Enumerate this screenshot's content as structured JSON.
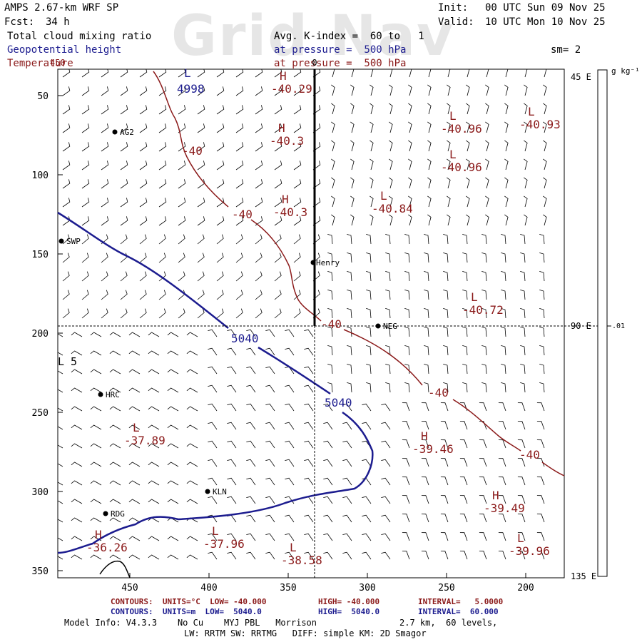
{
  "header": {
    "model": "AMPS 2.67-km WRF SP",
    "fcst_label": "Fcst:",
    "fcst_value": "34 h",
    "init_label": "Init:",
    "init_value": "00 UTC Sun 09 Nov 25",
    "valid_label": "Valid:",
    "valid_value": "10 UTC Mon 10 Nov 25",
    "field1": "Total cloud mixing ratio",
    "field2": "Geopotential height",
    "field3": "Temperature",
    "avg": "Avg. K-index =  60 to   1",
    "pressure1": "at pressure =  500 hPa",
    "pressure2": "at pressure =  500 hPa",
    "sm": "sm= 2",
    "watermark": "Grid Nav"
  },
  "colors": {
    "blue": "#1c1c8f",
    "red": "#8b1a1a",
    "black": "#000000"
  },
  "map": {
    "y_ticks": [
      "50",
      "100",
      "150",
      "200",
      "250",
      "300",
      "350"
    ],
    "x_ticks": [
      "450",
      "400",
      "350",
      "300",
      "250",
      "200"
    ],
    "top_tick_label": "0",
    "left_tick_label": "450",
    "right_labels": [
      "45 E",
      "90 E",
      "135 E"
    ],
    "stations": [
      "AG2",
      "SWP",
      "Henry",
      "NEG",
      "HRC",
      "KLN",
      "RDG"
    ],
    "height_contour_labels": [
      "5040",
      "5040",
      "4998"
    ],
    "temp_contour_labels": [
      "-40",
      "-40",
      "-40",
      "-40",
      "-40"
    ],
    "extrema": [
      {
        "type": "H",
        "value": "-40.29"
      },
      {
        "type": "L",
        "value": "-40.96"
      },
      {
        "type": "L",
        "value": "-40.93"
      },
      {
        "type": "H",
        "value": "-40.3"
      },
      {
        "type": "L",
        "value": "-40.96"
      },
      {
        "type": "H",
        "value": "-40.3"
      },
      {
        "type": "L",
        "value": "-40.84"
      },
      {
        "type": "L",
        "value": "-40.72"
      },
      {
        "type": "L",
        "value": "-37.89"
      },
      {
        "type": "H",
        "value": "-39.46"
      },
      {
        "type": "H",
        "value": "-39.49"
      },
      {
        "type": "L",
        "value": "-37.96"
      },
      {
        "type": "L",
        "value": "-38.58"
      },
      {
        "type": "L",
        "value": "-39.96"
      },
      {
        "type": "H",
        "value": "-36.26"
      }
    ],
    "height_low_label": "L",
    "height_extreme_L5": "L 5"
  },
  "colorbar": {
    "units": "g kg⁻¹",
    "value": ".01"
  },
  "footer": {
    "red_contours": "CONTOURS:  UNITS=°C  LOW= -40.000",
    "red_high": "HIGH= -40.000",
    "red_interval": "INTERVAL=   5.0000",
    "blue_contours": "CONTOURS:  UNITS=m  LOW=  5040.0",
    "blue_high": "HIGH=  5040.0",
    "blue_interval": "INTERVAL=  60.000",
    "model_info": "Model Info: V4.3.3    No Cu    MYJ PBL   Morrison",
    "resolution": "2.7 km,  60 levels,",
    "physics": "LW: RRTM SW: RRTMG   DIFF: simple KM: 2D Smagor"
  }
}
